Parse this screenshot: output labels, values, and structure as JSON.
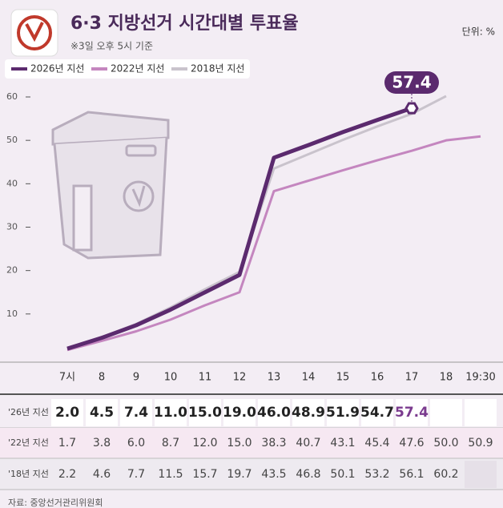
{
  "chart_data": {
    "type": "line",
    "title": "6·3 지방선거 시간대별 투표율",
    "subtitle": "※3일 오후 5시 기준",
    "unit": "단위: %",
    "source": "자료: 중앙선거관리위원회",
    "categories": [
      "7시",
      "8",
      "9",
      "10",
      "11",
      "12",
      "13",
      "14",
      "15",
      "16",
      "17",
      "18",
      "19:30"
    ],
    "ylim": [
      0,
      60
    ],
    "yticks": [
      10,
      20,
      30,
      40,
      50,
      60
    ],
    "table_row_labels": [
      "'26년 지선",
      "'22년 지선",
      "'18년 지선"
    ],
    "series": [
      {
        "name": "2026년 지선",
        "color": "#5b2a6e",
        "values": [
          2.0,
          4.5,
          7.4,
          11.0,
          15.0,
          19.0,
          46.0,
          48.9,
          51.9,
          54.7,
          57.4,
          null,
          null
        ],
        "value_labels": [
          "2.0",
          "4.5",
          "7.4",
          "11.0",
          "15.0",
          "19.0",
          "46.0",
          "48.9",
          "51.9",
          "54.7",
          "57.4",
          null,
          null
        ]
      },
      {
        "name": "2022년 지선",
        "color": "#c486bf",
        "values": [
          1.7,
          3.8,
          6.0,
          8.7,
          12.0,
          15.0,
          38.3,
          40.7,
          43.1,
          45.4,
          47.6,
          50.0,
          50.9
        ],
        "value_labels": [
          "1.7",
          "3.8",
          "6.0",
          "8.7",
          "12.0",
          "15.0",
          "38.3",
          "40.7",
          "43.1",
          "45.4",
          "47.6",
          "50.0",
          "50.9"
        ]
      },
      {
        "name": "2018년 지선",
        "color": "#c9c3cc",
        "values": [
          2.2,
          4.6,
          7.7,
          11.5,
          15.7,
          19.7,
          43.5,
          46.8,
          50.1,
          53.2,
          56.1,
          60.2,
          null
        ],
        "value_labels": [
          "2.2",
          "4.6",
          "7.7",
          "11.5",
          "15.7",
          "19.7",
          "43.5",
          "46.8",
          "50.1",
          "53.2",
          "56.1",
          "60.2",
          null
        ]
      }
    ]
  }
}
